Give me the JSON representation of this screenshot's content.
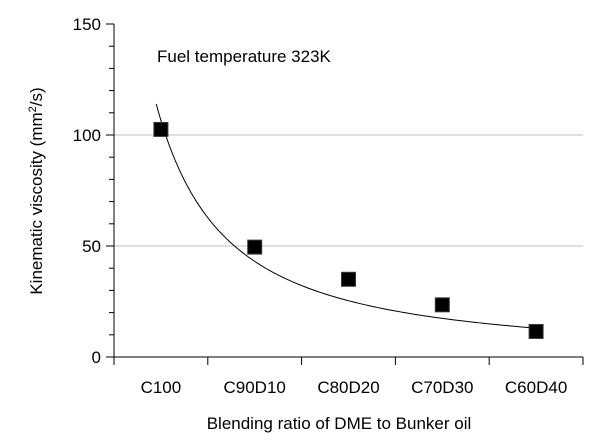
{
  "chart_data": {
    "type": "scatter",
    "categories": [
      "C100",
      "C90D10",
      "C80D20",
      "C70D30",
      "C60D40"
    ],
    "series": [
      {
        "values": [
          102.5,
          49.5,
          35,
          23.5,
          11.5
        ],
        "marker": "square",
        "color": "#000000"
      }
    ],
    "trendline": {
      "type": "power",
      "x_start": 0.95,
      "x_end": 5,
      "y_start": 114,
      "y_end": 13,
      "color": "#000000"
    },
    "title": "",
    "annotation": "Fuel temperature 323K",
    "xlabel": "Blending ratio of DME to Bunker oil",
    "ylabel_main": "Kinematic viscosity (mm",
    "ylabel_sup": "2",
    "ylabel_tail": "/s)",
    "ylim": [
      0,
      150
    ],
    "yticks": [
      0,
      50,
      100,
      150
    ],
    "y_minor_step": 10,
    "grid": true,
    "grid_values": [
      50,
      100
    ],
    "grid_color": "#c0c0c0",
    "legend": "none"
  }
}
